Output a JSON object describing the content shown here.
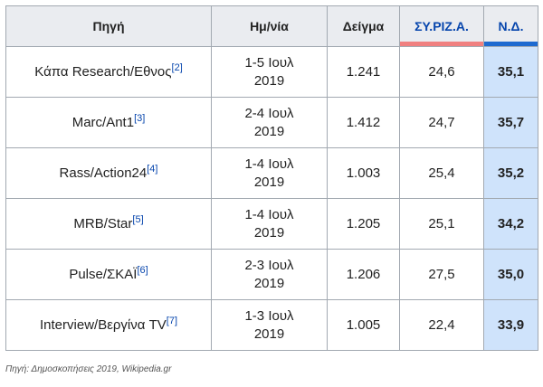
{
  "chart_data": {
    "type": "table",
    "columns": [
      "Πηγή",
      "Ημ/νία",
      "Δείγμα",
      "ΣΥ.ΡΙΖ.Α.",
      "Ν.Δ."
    ],
    "party_colors": {
      "syriza": "#f08080",
      "nd": "#1e6ad0"
    },
    "rows": [
      {
        "source": "Κάπα Research/Εθνος",
        "ref": "[2]",
        "date_line1": "1-5 Ιουλ",
        "date_line2": "2019",
        "sample": "1.241",
        "syriza": "24,6",
        "nd": "35,1"
      },
      {
        "source": "Marc/Ant1",
        "ref": "[3]",
        "date_line1": "2-4 Ιουλ",
        "date_line2": "2019",
        "sample": "1.412",
        "syriza": "24,7",
        "nd": "35,7"
      },
      {
        "source": "Rass/Action24",
        "ref": "[4]",
        "date_line1": "1-4 Ιουλ",
        "date_line2": "2019",
        "sample": "1.003",
        "syriza": "25,4",
        "nd": "35,2"
      },
      {
        "source": "MRB/Star",
        "ref": "[5]",
        "date_line1": "1-4 Ιουλ",
        "date_line2": "2019",
        "sample": "1.205",
        "syriza": "25,1",
        "nd": "34,2"
      },
      {
        "source": "Pulse/ΣΚΑΪ",
        "ref": "[6]",
        "date_line1": "2-3 Ιουλ",
        "date_line2": "2019",
        "sample": "1.206",
        "syriza": "27,5",
        "nd": "35,0"
      },
      {
        "source": "Interview/Βεργίνα TV",
        "ref": "[7]",
        "date_line1": "1-3 Ιουλ",
        "date_line2": "2019",
        "sample": "1.005",
        "syriza": "22,4",
        "nd": "33,9"
      }
    ]
  },
  "caption": "Πηγή: Δημοσκοπήσεις 2019, Wikipedia.gr"
}
